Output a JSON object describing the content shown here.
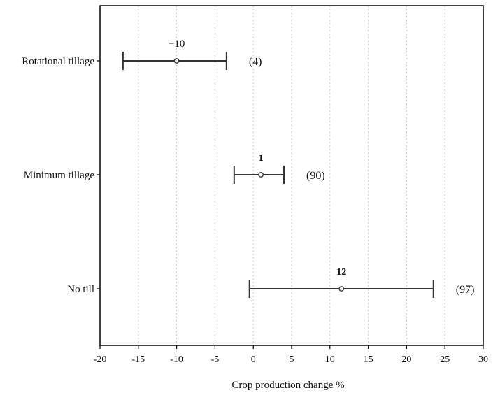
{
  "chart_data": {
    "type": "forest",
    "xlabel": "Crop production change %",
    "xlim": [
      -20,
      30
    ],
    "xticks": [
      -20,
      -15,
      -10,
      -5,
      0,
      5,
      10,
      15,
      20,
      25,
      30
    ],
    "grid": "vertical dotted",
    "categories": [
      "Rotational tillage",
      "Minimum tillage",
      "No till"
    ],
    "rows": [
      {
        "label": "Rotational tillage",
        "mean": -10,
        "lower": -17,
        "upper": -3.5,
        "mean_label": "−10",
        "n_label": "(4)"
      },
      {
        "label": "Minimum tillage",
        "mean": 1,
        "lower": -2.5,
        "upper": 4,
        "mean_label": "1",
        "n_label": "(90)"
      },
      {
        "label": "No till",
        "mean": 11.5,
        "lower": -0.5,
        "upper": 23.5,
        "mean_label": "12",
        "n_label": "(97)"
      }
    ]
  }
}
